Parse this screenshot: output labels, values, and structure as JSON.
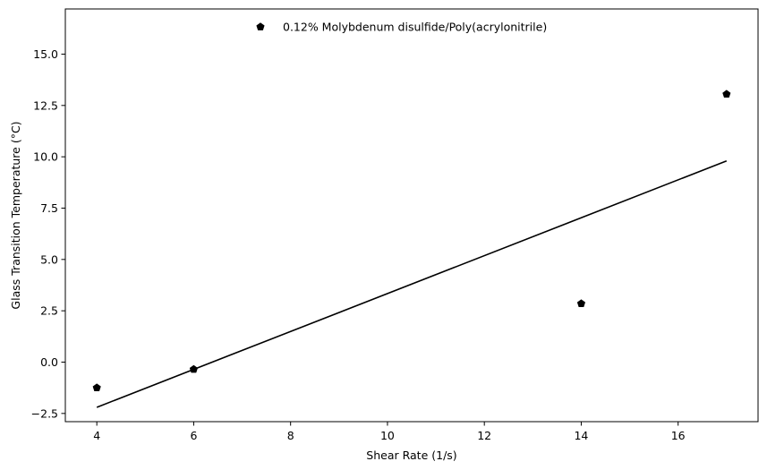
{
  "chart_data": {
    "type": "scatter",
    "title": "",
    "xlabel": "Shear Rate (1/s)",
    "ylabel": "Glass Transition Temperature (°C)",
    "xlim": [
      3.35,
      17.65
    ],
    "ylim": [
      -2.9,
      17.2
    ],
    "xticks": [
      4,
      6,
      8,
      10,
      12,
      14,
      16
    ],
    "yticks": [
      -2.5,
      0.0,
      2.5,
      5.0,
      7.5,
      10.0,
      12.5,
      15.0
    ],
    "xtick_labels": [
      "4",
      "6",
      "8",
      "10",
      "12",
      "14",
      "16"
    ],
    "ytick_labels": [
      "−2.5",
      "0.0",
      "2.5",
      "5.0",
      "7.5",
      "10.0",
      "12.5",
      "15.0"
    ],
    "grid": false,
    "legend_position": "top-center",
    "series": [
      {
        "name": "0.12% Molybdenum disulfide/Poly(acrylonitrile)",
        "marker": "pentagon",
        "color": "#000000",
        "x": [
          4,
          6,
          14,
          17
        ],
        "y": [
          -1.25,
          -0.35,
          2.85,
          13.05
        ]
      }
    ],
    "fit_line": {
      "color": "#000000",
      "x": [
        4,
        17
      ],
      "y": [
        -2.2,
        9.8
      ]
    }
  }
}
